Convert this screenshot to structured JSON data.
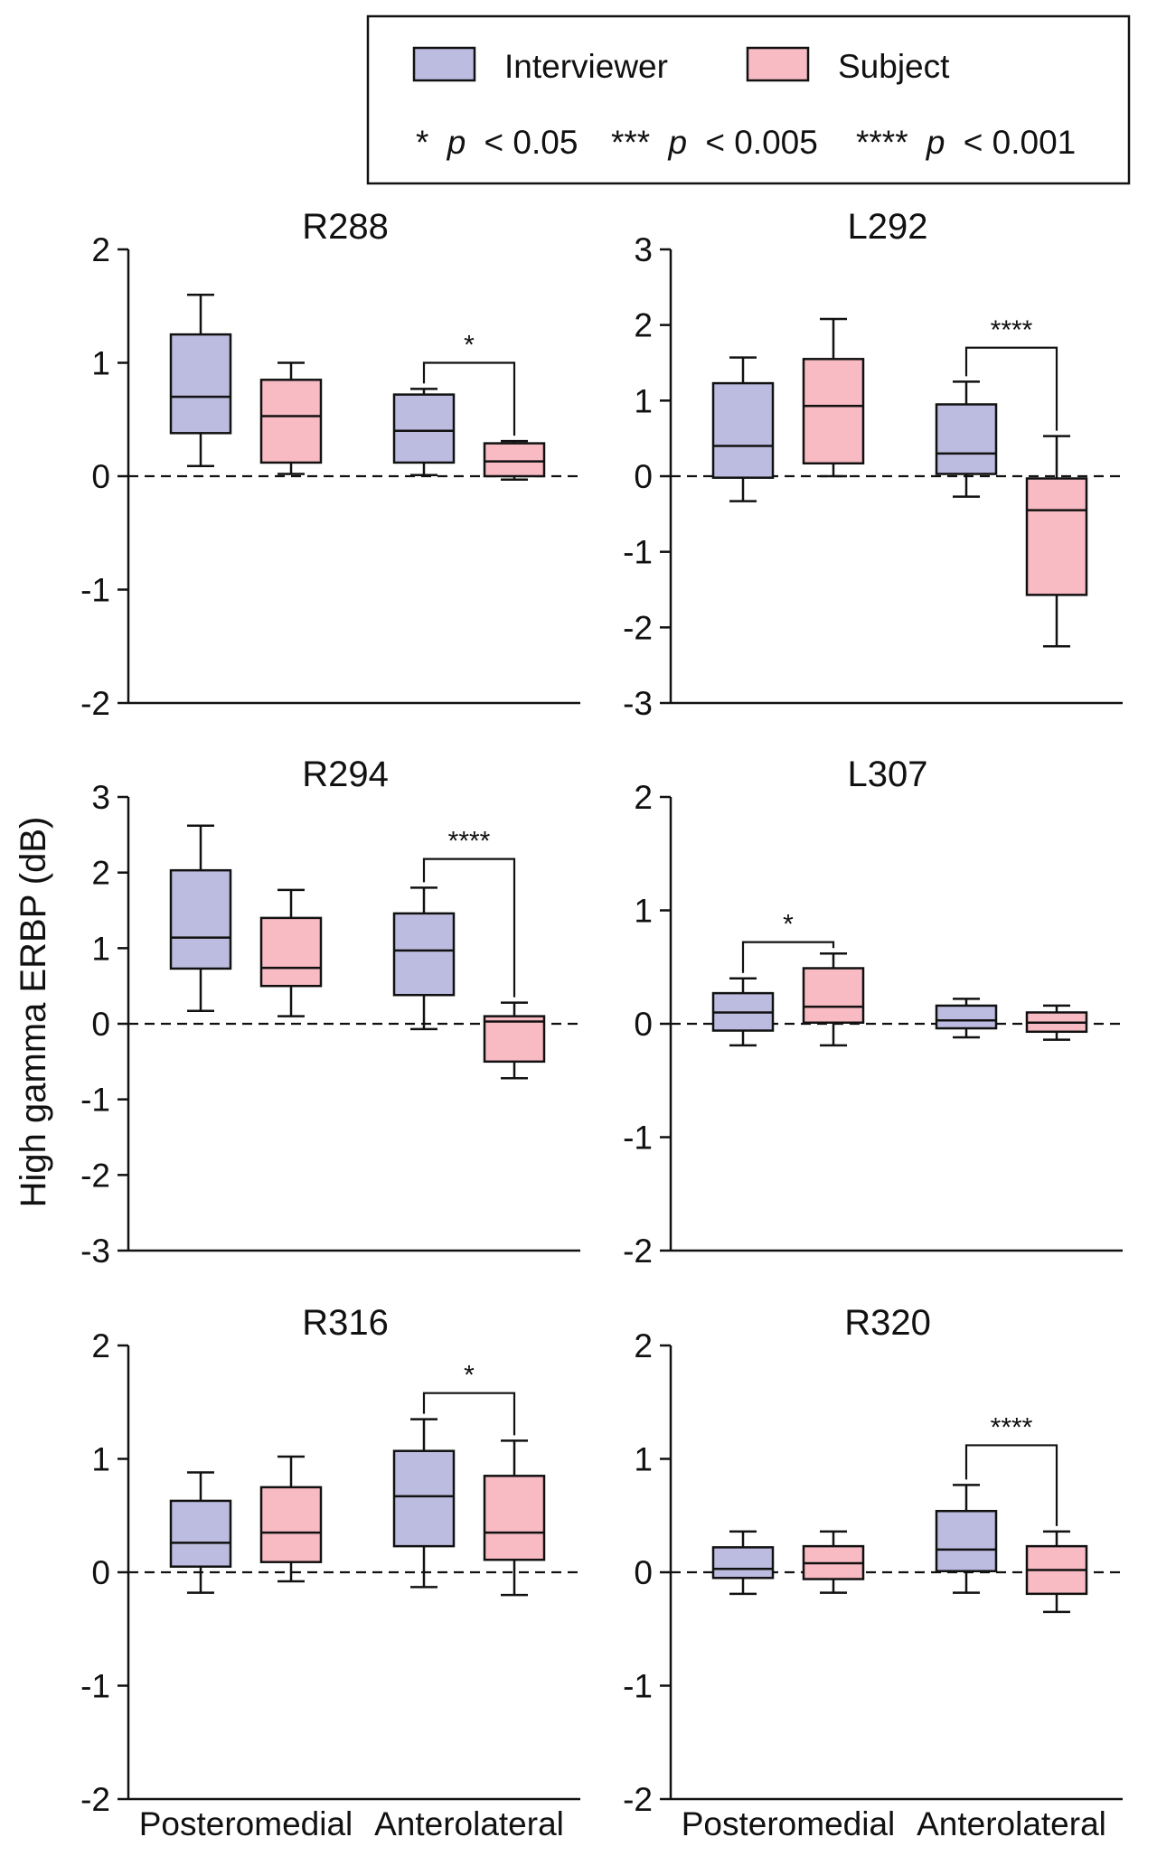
{
  "figure": {
    "ylabel": "High gamma ERBP (dB)",
    "colors": {
      "interviewer": "#BCBCE0",
      "subject": "#F8BAC3",
      "stroke": "#111111"
    }
  },
  "legend": {
    "items": [
      {
        "name": "Interviewer",
        "color": "#BCBCE0"
      },
      {
        "name": "Subject",
        "color": "#F8BAC3"
      }
    ],
    "significance": [
      {
        "stars": "*",
        "p_label": "p",
        "threshold": "< 0.05"
      },
      {
        "stars": "***",
        "p_label": "p",
        "threshold": "< 0.005"
      },
      {
        "stars": "****",
        "p_label": "p",
        "threshold": "< 0.001"
      }
    ]
  },
  "chart_data": [
    {
      "type": "box",
      "title": "R288",
      "ylim": [
        -2,
        2
      ],
      "yticks": [
        "2",
        "1",
        "0",
        "-1",
        "-2"
      ],
      "yticks_values": [
        2,
        1,
        0,
        -1,
        -2
      ],
      "xticklabels": [],
      "series": [
        {
          "name": "Interviewer",
          "boxes": [
            {
              "group": "Posteromedial",
              "min": 0.09,
              "q1": 0.38,
              "median": 0.7,
              "q3": 1.25,
              "max": 1.6
            },
            {
              "group": "Anterolateral",
              "min": 0.01,
              "q1": 0.12,
              "median": 0.4,
              "q3": 0.72,
              "max": 0.77
            }
          ]
        },
        {
          "name": "Subject",
          "boxes": [
            {
              "group": "Posteromedial",
              "min": 0.02,
              "q1": 0.12,
              "median": 0.53,
              "q3": 0.85,
              "max": 1.0
            },
            {
              "group": "Anterolateral",
              "min": -0.03,
              "q1": 0.0,
              "median": 0.13,
              "q3": 0.29,
              "max": 0.31
            }
          ]
        }
      ],
      "annotations": [
        {
          "group": "Anterolateral",
          "stars": "*",
          "y": 1.0
        }
      ]
    },
    {
      "type": "box",
      "title": "L292",
      "ylim": [
        -3,
        3
      ],
      "yticks": [
        "3",
        "2",
        "1",
        "0",
        "-1",
        "-2",
        "-3"
      ],
      "yticks_values": [
        3,
        2,
        1,
        0,
        -1,
        -2,
        -3
      ],
      "xticklabels": [],
      "series": [
        {
          "name": "Interviewer",
          "boxes": [
            {
              "group": "Posteromedial",
              "min": -0.33,
              "q1": -0.02,
              "median": 0.4,
              "q3": 1.23,
              "max": 1.57
            },
            {
              "group": "Anterolateral",
              "min": -0.27,
              "q1": 0.03,
              "median": 0.3,
              "q3": 0.95,
              "max": 1.25
            }
          ]
        },
        {
          "name": "Subject",
          "boxes": [
            {
              "group": "Posteromedial",
              "min": 0.0,
              "q1": 0.17,
              "median": 0.93,
              "q3": 1.55,
              "max": 2.08
            },
            {
              "group": "Anterolateral",
              "min": -2.25,
              "q1": -1.57,
              "median": -0.45,
              "q3": -0.03,
              "max": 0.53
            }
          ]
        }
      ],
      "annotations": [
        {
          "group": "Anterolateral",
          "stars": "****",
          "y": 1.7
        }
      ]
    },
    {
      "type": "box",
      "title": "R294",
      "ylim": [
        -3,
        3
      ],
      "yticks": [
        "3",
        "2",
        "1",
        "0",
        "-1",
        "-2",
        "-3"
      ],
      "yticks_values": [
        3,
        2,
        1,
        0,
        -1,
        -2,
        -3
      ],
      "xticklabels": [],
      "series": [
        {
          "name": "Interviewer",
          "boxes": [
            {
              "group": "Posteromedial",
              "min": 0.17,
              "q1": 0.73,
              "median": 1.14,
              "q3": 2.03,
              "max": 2.62
            },
            {
              "group": "Anterolateral",
              "min": -0.07,
              "q1": 0.38,
              "median": 0.97,
              "q3": 1.46,
              "max": 1.8
            }
          ]
        },
        {
          "name": "Subject",
          "boxes": [
            {
              "group": "Posteromedial",
              "min": 0.1,
              "q1": 0.5,
              "median": 0.74,
              "q3": 1.4,
              "max": 1.77
            },
            {
              "group": "Anterolateral",
              "min": -0.72,
              "q1": -0.5,
              "median": 0.03,
              "q3": 0.1,
              "max": 0.28
            }
          ]
        }
      ],
      "annotations": [
        {
          "group": "Anterolateral",
          "stars": "****",
          "y": 2.18
        }
      ]
    },
    {
      "type": "box",
      "title": "L307",
      "ylim": [
        -2,
        2
      ],
      "yticks": [
        "2",
        "1",
        "0",
        "-1",
        "-2"
      ],
      "yticks_values": [
        2,
        1,
        0,
        -1,
        -2
      ],
      "xticklabels": [],
      "series": [
        {
          "name": "Interviewer",
          "boxes": [
            {
              "group": "Posteromedial",
              "min": -0.19,
              "q1": -0.06,
              "median": 0.1,
              "q3": 0.27,
              "max": 0.4
            },
            {
              "group": "Anterolateral",
              "min": -0.12,
              "q1": -0.04,
              "median": 0.03,
              "q3": 0.16,
              "max": 0.22
            }
          ]
        },
        {
          "name": "Subject",
          "boxes": [
            {
              "group": "Posteromedial",
              "min": -0.19,
              "q1": 0.01,
              "median": 0.15,
              "q3": 0.49,
              "max": 0.62
            },
            {
              "group": "Anterolateral",
              "min": -0.14,
              "q1": -0.07,
              "median": 0.01,
              "q3": 0.1,
              "max": 0.16
            }
          ]
        }
      ],
      "annotations": [
        {
          "group": "Posteromedial",
          "stars": "*",
          "y": 0.72
        }
      ]
    },
    {
      "type": "box",
      "title": "R316",
      "ylim": [
        -2,
        2
      ],
      "yticks": [
        "2",
        "1",
        "0",
        "-1",
        "-2"
      ],
      "yticks_values": [
        2,
        1,
        0,
        -1,
        -2
      ],
      "xticklabels": [
        "Posteromedial",
        "Anterolateral"
      ],
      "series": [
        {
          "name": "Interviewer",
          "boxes": [
            {
              "group": "Posteromedial",
              "min": -0.18,
              "q1": 0.05,
              "median": 0.26,
              "q3": 0.63,
              "max": 0.88
            },
            {
              "group": "Anterolateral",
              "min": -0.13,
              "q1": 0.23,
              "median": 0.67,
              "q3": 1.07,
              "max": 1.35
            }
          ]
        },
        {
          "name": "Subject",
          "boxes": [
            {
              "group": "Posteromedial",
              "min": -0.08,
              "q1": 0.09,
              "median": 0.35,
              "q3": 0.75,
              "max": 1.02
            },
            {
              "group": "Anterolateral",
              "min": -0.2,
              "q1": 0.11,
              "median": 0.35,
              "q3": 0.85,
              "max": 1.16
            }
          ]
        }
      ],
      "annotations": [
        {
          "group": "Anterolateral",
          "stars": "*",
          "y": 1.58
        }
      ]
    },
    {
      "type": "box",
      "title": "R320",
      "ylim": [
        -2,
        2
      ],
      "yticks": [
        "2",
        "1",
        "0",
        "-1",
        "-2"
      ],
      "yticks_values": [
        2,
        1,
        0,
        -1,
        -2
      ],
      "xticklabels": [
        "Posteromedial",
        "Anterolateral"
      ],
      "series": [
        {
          "name": "Interviewer",
          "boxes": [
            {
              "group": "Posteromedial",
              "min": -0.19,
              "q1": -0.05,
              "median": 0.03,
              "q3": 0.22,
              "max": 0.36
            },
            {
              "group": "Anterolateral",
              "min": -0.18,
              "q1": 0.01,
              "median": 0.2,
              "q3": 0.54,
              "max": 0.77
            }
          ]
        },
        {
          "name": "Subject",
          "boxes": [
            {
              "group": "Posteromedial",
              "min": -0.18,
              "q1": -0.06,
              "median": 0.08,
              "q3": 0.23,
              "max": 0.36
            },
            {
              "group": "Anterolateral",
              "min": -0.35,
              "q1": -0.19,
              "median": 0.02,
              "q3": 0.23,
              "max": 0.36
            }
          ]
        }
      ],
      "annotations": [
        {
          "group": "Anterolateral",
          "stars": "****",
          "y": 1.12
        }
      ]
    }
  ]
}
